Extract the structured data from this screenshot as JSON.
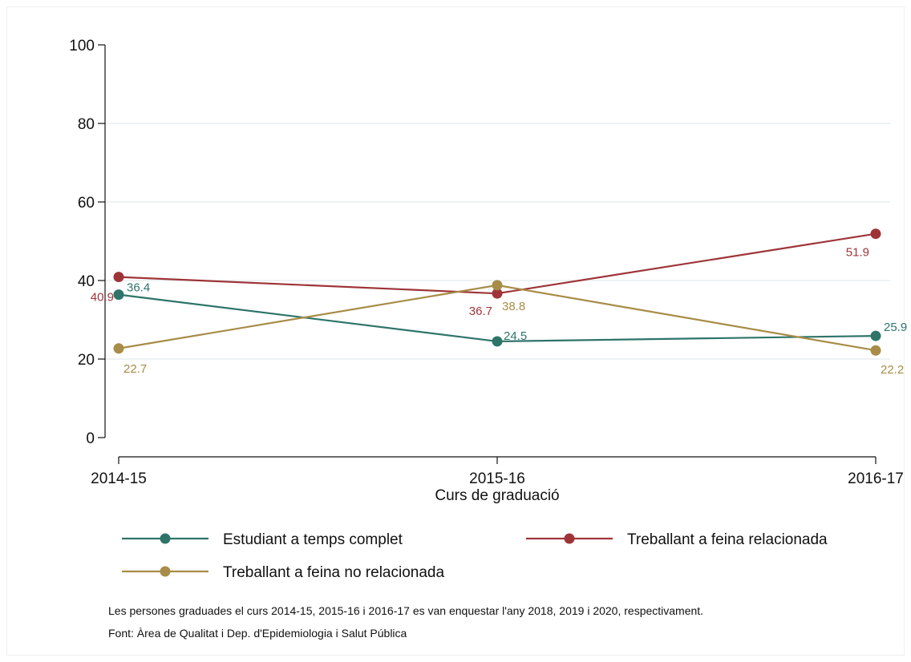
{
  "chart_data": {
    "type": "line",
    "categories": [
      "2014-15",
      "2015-16",
      "2016-17"
    ],
    "xlabel": "Curs de graduació",
    "ylabel": "",
    "ylim": [
      0,
      100
    ],
    "yticks": [
      0,
      20,
      40,
      60,
      80,
      100
    ],
    "grid": true,
    "legend_position": "bottom",
    "series": [
      {
        "name": "Estudiant a temps complet",
        "color": "#2e7469",
        "values": [
          36.4,
          24.5,
          25.9
        ],
        "labels": [
          "36.4",
          "24.5",
          "25.9"
        ]
      },
      {
        "name": "Treballant a feina relacionada",
        "color": "#9e3438",
        "values": [
          40.9,
          36.7,
          51.9
        ],
        "labels": [
          "40.9",
          "36.7",
          "51.9"
        ]
      },
      {
        "name": "Treballant a feina no relacionada",
        "color": "#a88c47",
        "values": [
          22.7,
          38.8,
          22.2
        ],
        "labels": [
          "22.7",
          "38.8",
          "22.2"
        ]
      }
    ]
  },
  "notes": {
    "line1": "Les persones graduades el curs 2014-15, 2015-16 i 2016-17 es van enquestar l'any 2018, 2019 i 2020, respectivament.",
    "line2": "Font: Àrea de Qualitat i Dep. d'Epidemiologia i Salut Pública"
  }
}
